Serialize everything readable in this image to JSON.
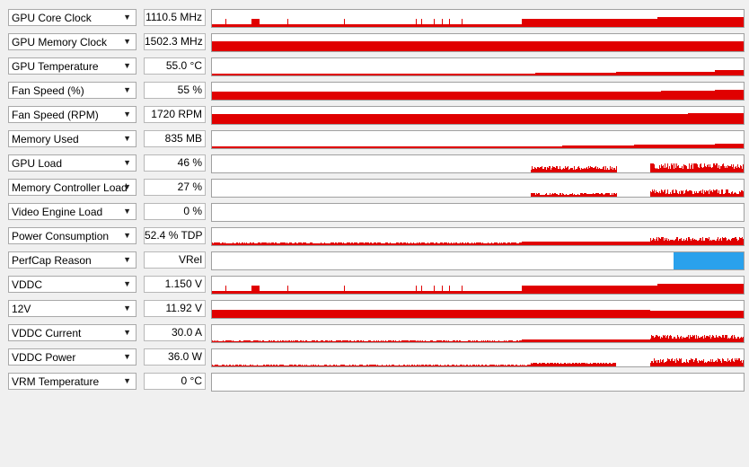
{
  "colors": {
    "graph_fill": "#e00000",
    "perfcap_vrel": "#2aa1ec"
  },
  "sensors": [
    {
      "name": "GPU Core Clock",
      "value": "1110.5 MHz"
    },
    {
      "name": "GPU Memory Clock",
      "value": "1502.3 MHz"
    },
    {
      "name": "GPU Temperature",
      "value": "55.0 °C"
    },
    {
      "name": "Fan Speed (%)",
      "value": "55 %"
    },
    {
      "name": "Fan Speed (RPM)",
      "value": "1720 RPM"
    },
    {
      "name": "Memory Used",
      "value": "835 MB"
    },
    {
      "name": "GPU Load",
      "value": "46 %"
    },
    {
      "name": "Memory Controller Load",
      "value": "27 %"
    },
    {
      "name": "Video Engine Load",
      "value": "0 %"
    },
    {
      "name": "Power Consumption",
      "value": "52.4 % TDP"
    },
    {
      "name": "PerfCap Reason",
      "value": "VRel"
    },
    {
      "name": "VDDC",
      "value": "1.150 V"
    },
    {
      "name": "12V",
      "value": "11.92 V"
    },
    {
      "name": "VDDC Current",
      "value": "30.0 A"
    },
    {
      "name": "VDDC Power",
      "value": "36.0 W"
    },
    {
      "name": "VRM Temperature",
      "value": "0 °C"
    }
  ]
}
